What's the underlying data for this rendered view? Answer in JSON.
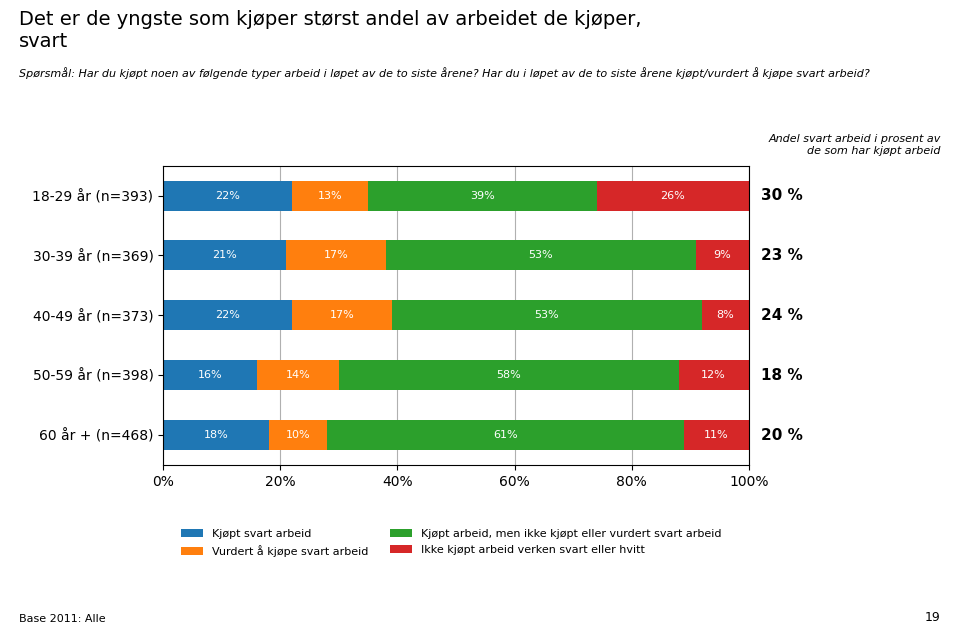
{
  "chart_data": {
    "type": "bar",
    "orientation": "horizontal",
    "stacked": true,
    "title": "Det er de yngste som kjøper størst andel av arbeidet de kjøper,\nsvart",
    "subtitle": "Spørsmål: Har du kjøpt noen av følgende typer arbeid i løpet av de to siste årene? Har du i løpet av de to siste årene kjøpt/vurdert å kjøpe svart arbeid?",
    "annotation": "Andel svart arbeid i prosent av\nde som har kjøpt arbeid",
    "right_labels": [
      "30 %",
      "23 %",
      "24 %",
      "18 %",
      "20 %"
    ],
    "note": "Base 2011: Alle",
    "page_number": "19",
    "categories": [
      "18-29 år (n=393)",
      "30-39 år (n=369)",
      "40-49 år (n=373)",
      "50-59 år (n=398)",
      "60 år + (n=468)"
    ],
    "series": [
      {
        "name": "Kjøpt svart arbeid",
        "values": [
          22,
          21,
          22,
          16,
          18
        ],
        "value_labels": [
          "22%",
          "21%",
          "22%",
          "16%",
          "18%"
        ]
      },
      {
        "name": "Vurdert å kjøpe svart arbeid",
        "values": [
          13,
          17,
          17,
          14,
          10
        ],
        "value_labels": [
          "13%",
          "17%",
          "17%",
          "14%",
          "10%"
        ]
      },
      {
        "name": "Kjøpt arbeid, men ikke kjøpt eller vurdert svart arbeid",
        "values": [
          39,
          53,
          53,
          58,
          61
        ],
        "value_labels": [
          "39%",
          "53%",
          "53%",
          "58%",
          "61%"
        ]
      },
      {
        "name": "Ikke kjøpt arbeid verken svart eller hvitt",
        "values": [
          26,
          9,
          8,
          12,
          11
        ],
        "value_labels": [
          "26%",
          "9%",
          "8%",
          "12%",
          "11%"
        ]
      }
    ],
    "xlim": [
      0,
      100
    ],
    "xticks": [
      {
        "value": 0,
        "label": "0%"
      },
      {
        "value": 20,
        "label": "20%"
      },
      {
        "value": 40,
        "label": "40%"
      },
      {
        "value": 60,
        "label": "60%"
      },
      {
        "value": 80,
        "label": "80%"
      },
      {
        "value": 100,
        "label": "100%"
      }
    ],
    "grid": true,
    "data_labels": true,
    "legend": "upper center"
  }
}
